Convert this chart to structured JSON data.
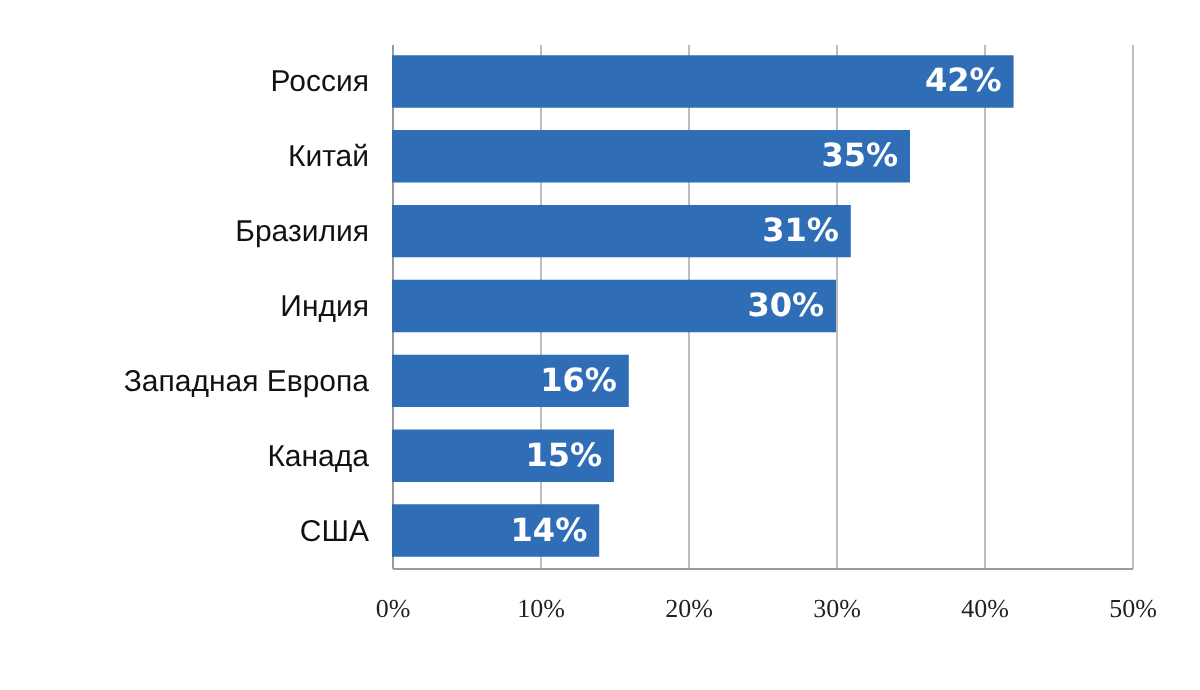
{
  "chart_data": {
    "type": "bar",
    "orientation": "horizontal",
    "categories": [
      "Россия",
      "Китай",
      "Бразилия",
      "Индия",
      "Западная Европа",
      "Канада",
      "США"
    ],
    "values": [
      42,
      35,
      31,
      30,
      16,
      15,
      14
    ],
    "value_labels": [
      "42%",
      "35%",
      "31%",
      "30%",
      "16%",
      "15%",
      "14%"
    ],
    "color": "#2f6db7",
    "xlim": [
      0,
      50
    ],
    "xticks": [
      {
        "value": 0,
        "label": "0%"
      },
      {
        "value": 10,
        "label": "10%"
      },
      {
        "value": 20,
        "label": "20%"
      },
      {
        "value": 30,
        "label": "30%"
      },
      {
        "value": 40,
        "label": "40%"
      },
      {
        "value": 50,
        "label": "50%"
      }
    ],
    "grid": "x"
  }
}
